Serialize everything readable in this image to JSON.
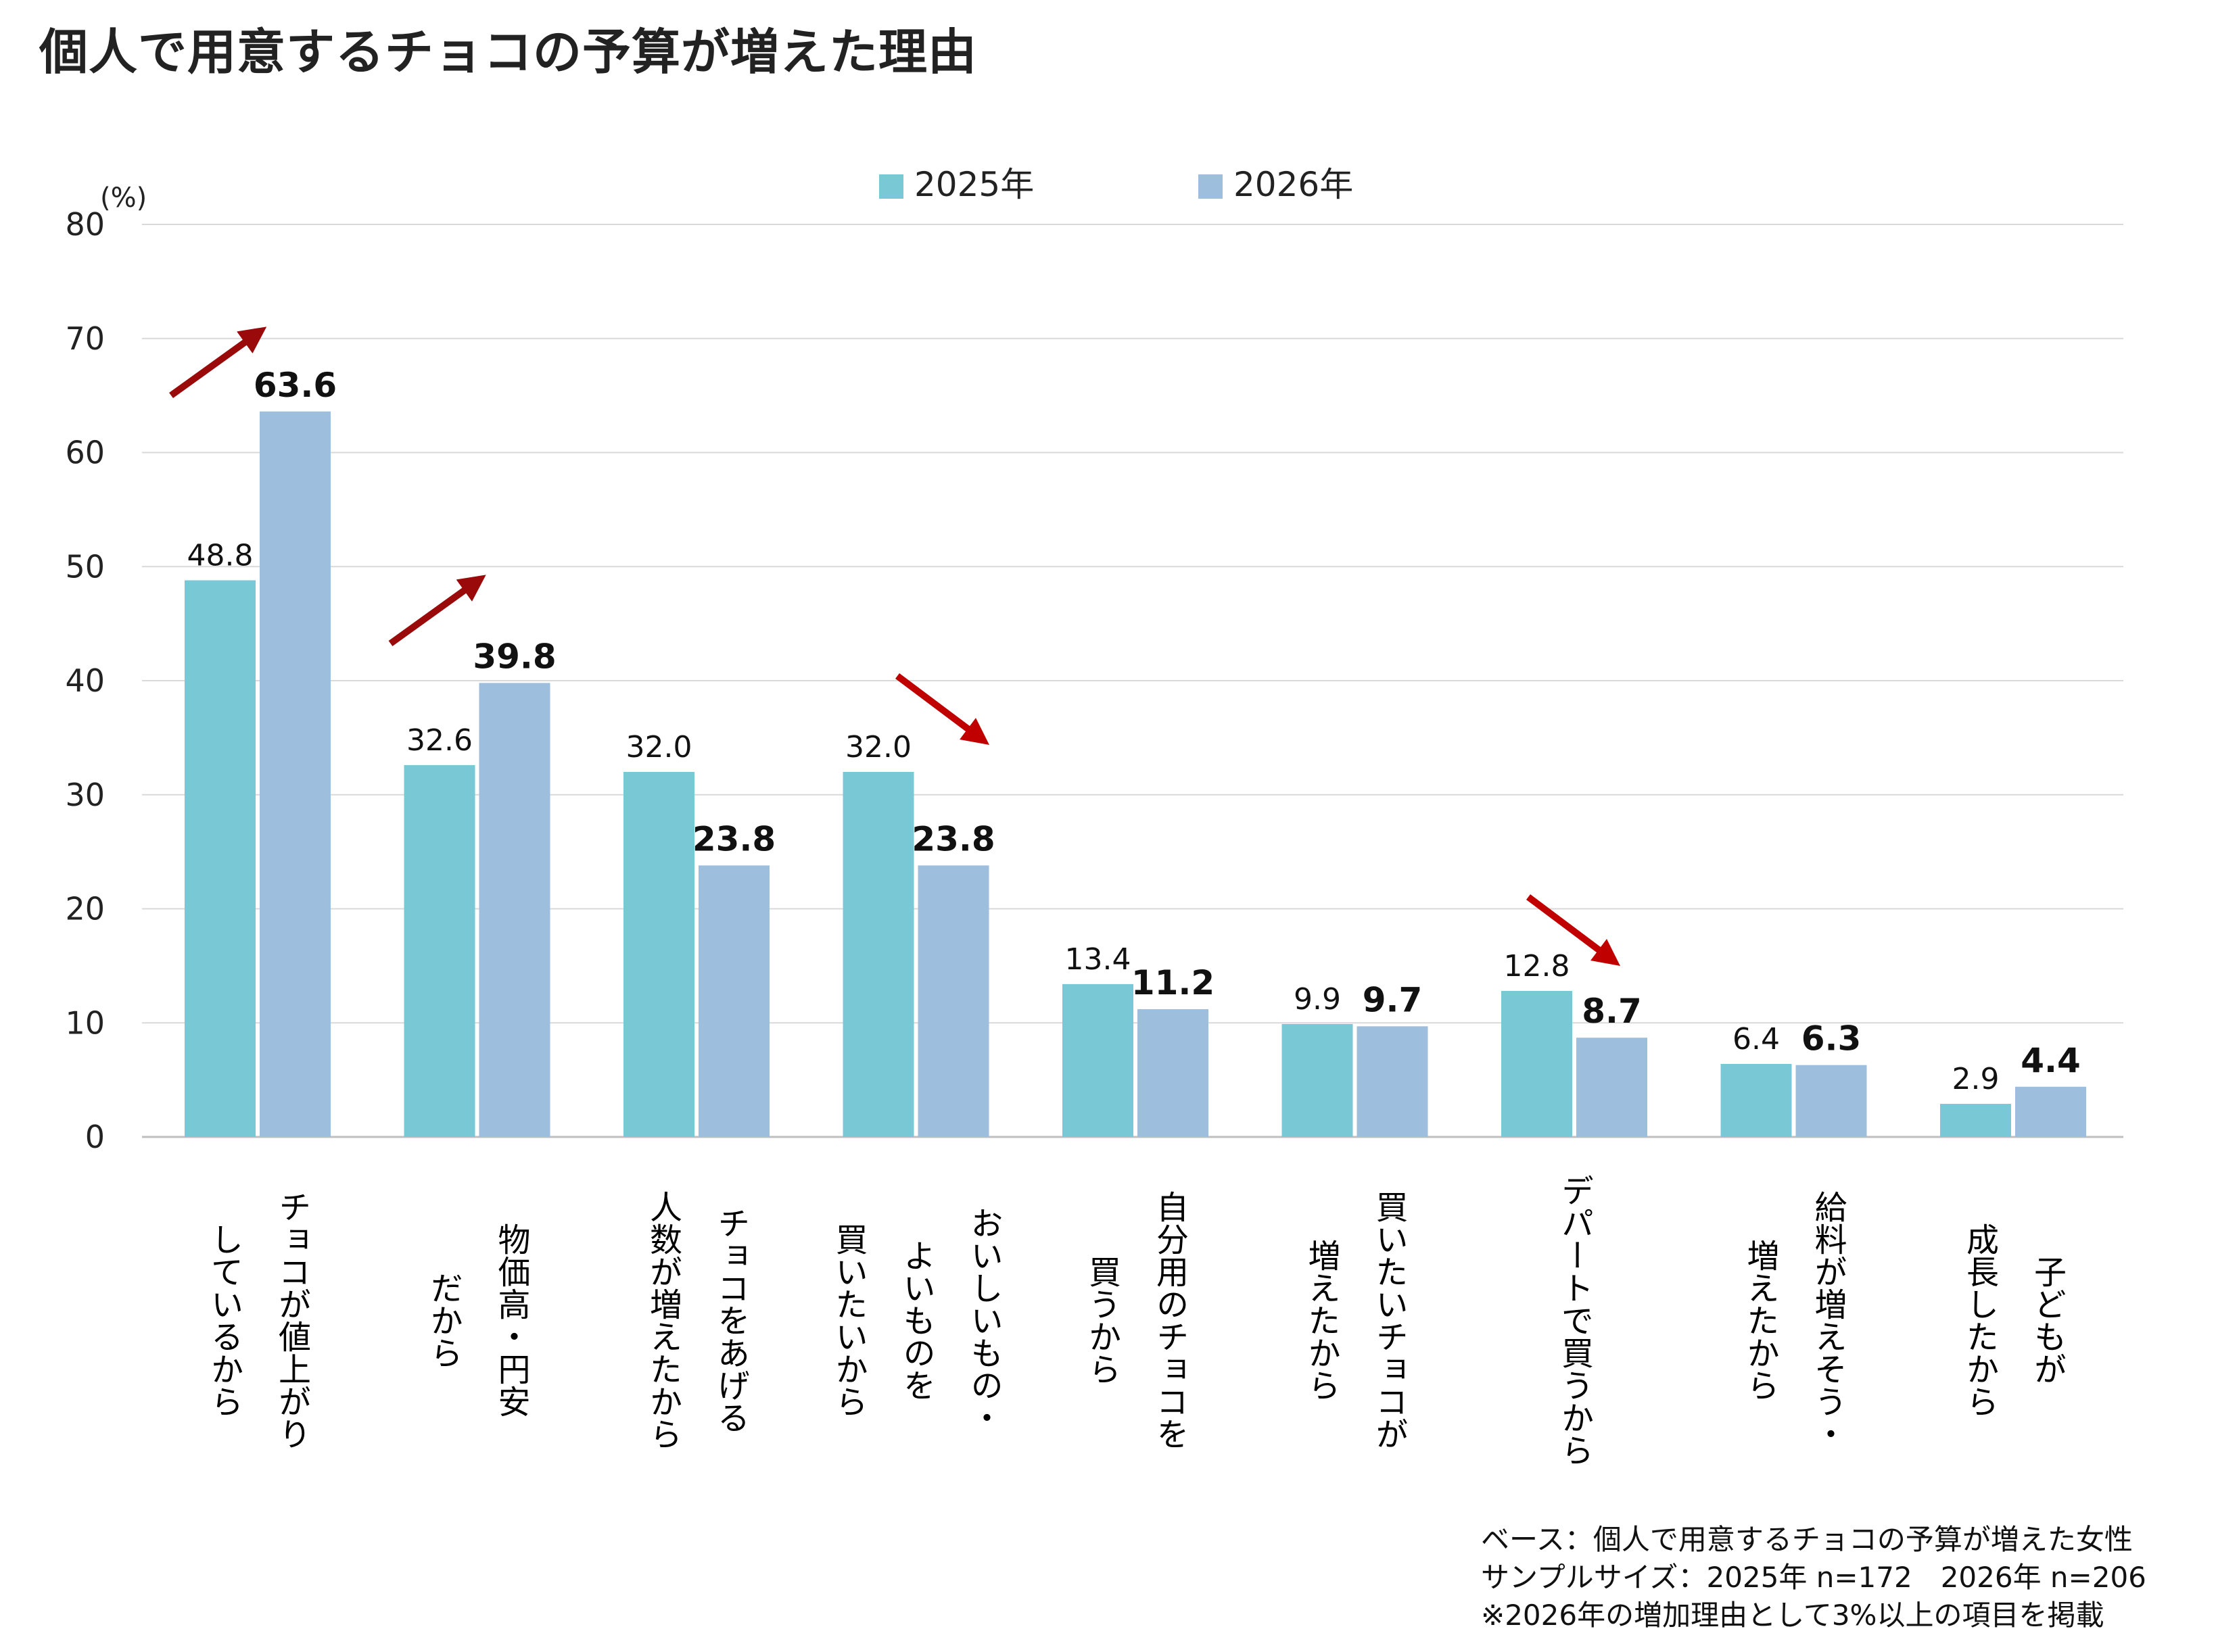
{
  "chart_data": {
    "type": "bar",
    "title": "個人で用意するチョコの予算が増えた理由",
    "ylabel": "(%)",
    "ylim": [
      0,
      80
    ],
    "yticks": [
      0,
      10,
      20,
      30,
      40,
      50,
      60,
      70,
      80
    ],
    "grid": true,
    "legend_position": "top-center",
    "categories": [
      "チョコが値上がり\nしているから",
      "物価高・円安\nだから",
      "チョコをあげる\n人数が増えたから",
      "おいしいもの・\nよいものを\n買いたいから",
      "自分用のチョコを\n買うから",
      "買いたいチョコが\n増えたから",
      "デパートで買うから",
      "給料が増えそう・\n増えたから",
      "子どもが\n成長したから"
    ],
    "series": [
      {
        "name": "2025年",
        "color": "#78C8D5",
        "label_bold": false,
        "values": [
          48.8,
          32.6,
          32.0,
          32.0,
          13.4,
          9.9,
          12.8,
          6.4,
          2.9
        ]
      },
      {
        "name": "2026年",
        "color": "#9DBEDD",
        "label_bold": true,
        "values": [
          63.6,
          39.8,
          23.8,
          23.8,
          11.2,
          9.7,
          8.7,
          6.3,
          4.4
        ]
      }
    ],
    "value_labels": [
      [
        "48.8",
        "32.6",
        "32.0",
        "32.0",
        "13.4",
        "9.9",
        "12.8",
        "6.4",
        "2.9"
      ],
      [
        "63.6",
        "39.8",
        "23.8",
        "23.8",
        "11.2",
        "9.7",
        "8.7",
        "6.3",
        "4.4"
      ]
    ],
    "tick_labels": [
      "0",
      "10",
      "20",
      "30",
      "40",
      "50",
      "60",
      "70",
      "80"
    ],
    "annotations": [
      {
        "type": "arrow",
        "category_index": 0,
        "direction": "up",
        "color": "#9B0A0A"
      },
      {
        "type": "arrow",
        "category_index": 1,
        "direction": "up",
        "color": "#9B0A0A"
      },
      {
        "type": "arrow",
        "category_index": 3,
        "direction": "down",
        "color": "#C00000"
      },
      {
        "type": "arrow",
        "category_index": 6,
        "direction": "down",
        "color": "#C00000"
      }
    ],
    "footnotes": [
      "ベース：個人で用意するチョコの予算が増えた女性",
      "サンプルサイズ：2025年 n=172　2026年 n=206",
      "※2026年の増加理由として3%以上の項目を掲載"
    ]
  }
}
